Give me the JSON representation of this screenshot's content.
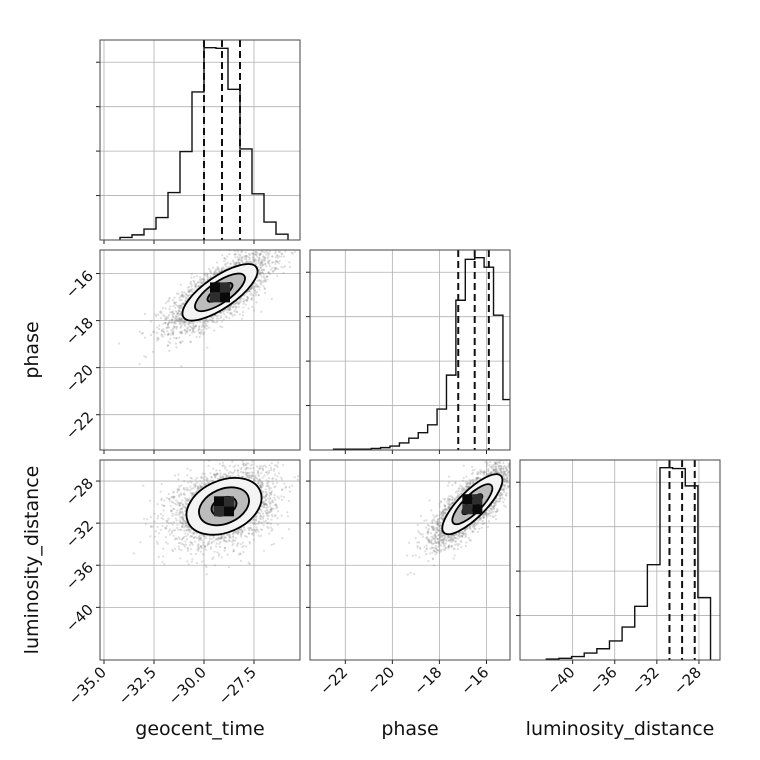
{
  "chart_data": {
    "type": "corner",
    "parameters": [
      "geocent_time",
      "phase",
      "luminosity_distance"
    ],
    "labels": [
      "geocent_time",
      "phase",
      "luminosity_distance"
    ],
    "ranges": [
      [
        -35.2,
        -25.2
      ],
      [
        -23.5,
        -15.0
      ],
      [
        -45.0,
        -26.0
      ]
    ],
    "ticks": [
      {
        "values": [
          -35.0,
          -32.5,
          -30.0,
          -27.5
        ],
        "labels": [
          "−35.0",
          "−32.5",
          "−30.0",
          "−27.5"
        ]
      },
      {
        "values": [
          -22,
          -20,
          -18,
          -16
        ],
        "labels": [
          "−22",
          "−20",
          "−18",
          "−16"
        ]
      },
      {
        "values": [
          -40,
          -36,
          -32,
          -28
        ],
        "labels": [
          "−40",
          "−36",
          "−32",
          "−28"
        ]
      }
    ],
    "grid": true,
    "quantiles": [
      0.16,
      0.5,
      0.84
    ],
    "quantile_values": [
      [
        -30.0,
        -29.1,
        -28.2
      ],
      [
        -17.2,
        -16.5,
        -15.9
      ],
      [
        -30.8,
        -29.6,
        -28.4
      ]
    ],
    "histograms": [
      {
        "parameter": "geocent_time",
        "bin_edges": [
          -34.2,
          -33.6,
          -33.0,
          -32.4,
          -31.8,
          -31.2,
          -30.6,
          -30.0,
          -29.4,
          -28.8,
          -28.2,
          -27.6,
          -27.0,
          -26.4,
          -25.8
        ],
        "counts": [
          4,
          8,
          17,
          35,
          74,
          138,
          231,
          300,
          299,
          235,
          142,
          72,
          28,
          9
        ]
      },
      {
        "parameter": "phase",
        "bin_edges": [
          -22.5,
          -22.1,
          -21.7,
          -21.3,
          -20.9,
          -20.5,
          -20.1,
          -19.7,
          -19.3,
          -18.9,
          -18.5,
          -18.1,
          -17.7,
          -17.3,
          -16.9,
          -16.5,
          -16.1,
          -15.7,
          -15.3,
          -14.9
        ],
        "counts": [
          1,
          1,
          1,
          1,
          2,
          3,
          5,
          9,
          15,
          22,
          32,
          52,
          95,
          190,
          242,
          244,
          232,
          171,
          64
        ]
      },
      {
        "parameter": "luminosity_distance",
        "bin_edges": [
          -42.5,
          -41.3,
          -40.1,
          -38.9,
          -37.7,
          -36.5,
          -35.3,
          -34.1,
          -32.9,
          -31.7,
          -30.5,
          -29.3,
          -28.1,
          -26.9
        ],
        "counts": [
          1,
          2,
          4,
          8,
          13,
          22,
          38,
          62,
          110,
          222,
          221,
          201,
          72
        ]
      }
    ],
    "pairs": [
      {
        "x": "geocent_time",
        "y": "phase",
        "mean": [
          -29.2,
          -16.8
        ],
        "sd": [
          1.25,
          0.8
        ],
        "rho": 0.75,
        "samples": 3000
      },
      {
        "x": "geocent_time",
        "y": "luminosity_distance",
        "mean": [
          -29.0,
          -30.4
        ],
        "sd": [
          1.25,
          1.8
        ],
        "rho": 0.3,
        "samples": 3000
      },
      {
        "x": "phase",
        "y": "luminosity_distance",
        "mean": [
          -16.6,
          -30.2
        ],
        "sd": [
          0.85,
          1.9
        ],
        "rho": 0.8,
        "samples": 3000
      }
    ],
    "contour_levels": [
      0.5,
      1.0,
      1.5
    ]
  }
}
